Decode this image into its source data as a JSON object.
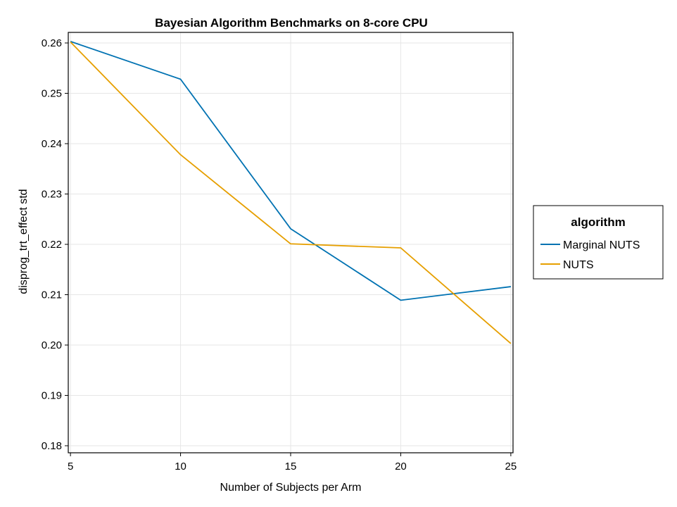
{
  "chart_data": {
    "type": "line",
    "title": "Bayesian Algorithm Benchmarks on 8-core CPU",
    "xlabel": "Number of Subjects per Arm",
    "ylabel": "disprog_trt_effect std",
    "x": [
      5,
      10,
      15,
      20,
      25
    ],
    "x_ticks": [
      "5",
      "10",
      "15",
      "20",
      "25"
    ],
    "y_ticks": [
      "0.18",
      "0.19",
      "0.20",
      "0.21",
      "0.22",
      "0.23",
      "0.24",
      "0.25",
      "0.26"
    ],
    "xlim": [
      4.9,
      25.1
    ],
    "ylim": [
      0.1786,
      0.2621
    ],
    "grid": true,
    "legend": {
      "title": "algorithm",
      "placement": "right"
    },
    "series": [
      {
        "name": "Marginal NUTS",
        "color": "#0072B2",
        "values": [
          0.2603,
          0.2528,
          0.2231,
          0.2089,
          0.2116
        ]
      },
      {
        "name": "NUTS",
        "color": "#E69F00",
        "values": [
          0.2602,
          0.2378,
          0.2201,
          0.2193,
          0.2003
        ]
      }
    ]
  }
}
